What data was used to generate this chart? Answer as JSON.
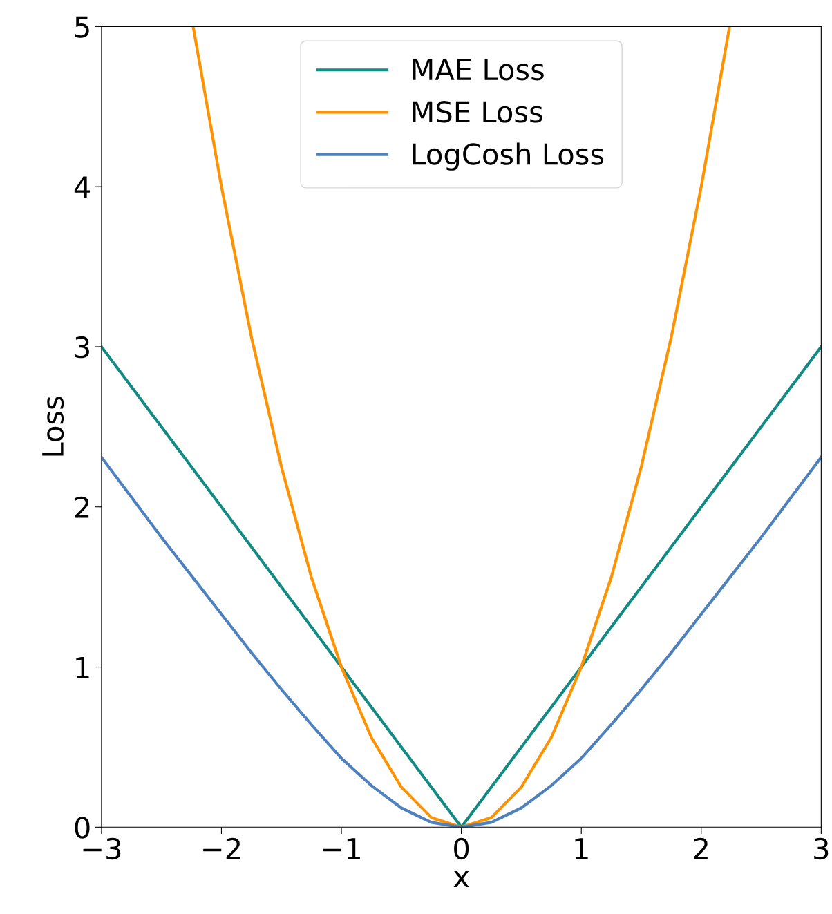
{
  "chart_data": {
    "type": "line",
    "xlabel": "x",
    "ylabel": "Loss",
    "xlim": [
      -3,
      3
    ],
    "ylim": [
      0,
      5
    ],
    "xticks": [
      {
        "value": -3,
        "label": "−3"
      },
      {
        "value": -2,
        "label": "−2"
      },
      {
        "value": -1,
        "label": "−1"
      },
      0,
      1,
      2,
      3
    ],
    "yticks": [
      0,
      1,
      2,
      3,
      4,
      5
    ],
    "legend": "top",
    "grid": false,
    "marker": "none",
    "line_style": "solid",
    "series": [
      {
        "name": "MAE Loss",
        "color": "#138a84",
        "x": [
          -3,
          0,
          3
        ],
        "values": [
          3,
          0,
          3
        ]
      },
      {
        "name": "MSE Loss",
        "color": "#ff9200",
        "x": [
          -2.236,
          -2,
          -1.75,
          -1.5,
          -1.25,
          -1,
          -0.75,
          -0.5,
          -0.25,
          0,
          0.25,
          0.5,
          0.75,
          1,
          1.25,
          1.5,
          1.75,
          2,
          2.236
        ],
        "values": [
          5.0,
          4.0,
          3.06,
          2.25,
          1.56,
          1.0,
          0.56,
          0.25,
          0.06,
          0,
          0.06,
          0.25,
          0.56,
          1.0,
          1.56,
          2.25,
          3.06,
          4.0,
          5.0
        ]
      },
      {
        "name": "LogCosh Loss",
        "color": "#4f81bd",
        "x": [
          -3,
          -2.75,
          -2.5,
          -2.25,
          -2,
          -1.75,
          -1.5,
          -1.25,
          -1,
          -0.75,
          -0.5,
          -0.25,
          0,
          0.25,
          0.5,
          0.75,
          1,
          1.25,
          1.5,
          1.75,
          2,
          2.25,
          2.5,
          2.75,
          3
        ],
        "values": [
          2.31,
          2.06,
          1.81,
          1.57,
          1.33,
          1.09,
          0.86,
          0.64,
          0.43,
          0.26,
          0.12,
          0.03,
          0,
          0.03,
          0.12,
          0.26,
          0.43,
          0.64,
          0.86,
          1.09,
          1.33,
          1.57,
          1.81,
          2.06,
          2.31
        ]
      }
    ]
  }
}
